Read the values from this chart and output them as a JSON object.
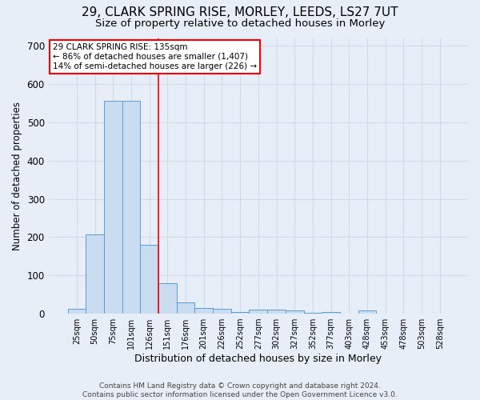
{
  "title1": "29, CLARK SPRING RISE, MORLEY, LEEDS, LS27 7UT",
  "title2": "Size of property relative to detached houses in Morley",
  "xlabel": "Distribution of detached houses by size in Morley",
  "ylabel": "Number of detached properties",
  "categories": [
    "25sqm",
    "50sqm",
    "75sqm",
    "101sqm",
    "126sqm",
    "151sqm",
    "176sqm",
    "201sqm",
    "226sqm",
    "252sqm",
    "277sqm",
    "302sqm",
    "327sqm",
    "352sqm",
    "377sqm",
    "403sqm",
    "428sqm",
    "453sqm",
    "478sqm",
    "503sqm",
    "528sqm"
  ],
  "values": [
    13,
    207,
    557,
    557,
    180,
    80,
    30,
    15,
    12,
    5,
    10,
    10,
    8,
    3,
    5,
    0,
    8,
    0,
    0,
    0,
    0
  ],
  "bar_color": "#c9dcf0",
  "bar_edge_color": "#5b9bd5",
  "red_line_x": 4.5,
  "annotation_text": "29 CLARK SPRING RISE: 135sqm\n← 86% of detached houses are smaller (1,407)\n14% of semi-detached houses are larger (226) →",
  "annotation_box_color": "white",
  "annotation_box_edge": "red",
  "footer": "Contains HM Land Registry data © Crown copyright and database right 2024.\nContains public sector information licensed under the Open Government Licence v3.0.",
  "ylim": [
    0,
    720
  ],
  "yticks": [
    0,
    100,
    200,
    300,
    400,
    500,
    600,
    700
  ],
  "bg_color": "#e8eef8",
  "grid_color": "#d0dae8",
  "title1_fontsize": 11,
  "title2_fontsize": 9.5,
  "footer_fontsize": 6.5
}
